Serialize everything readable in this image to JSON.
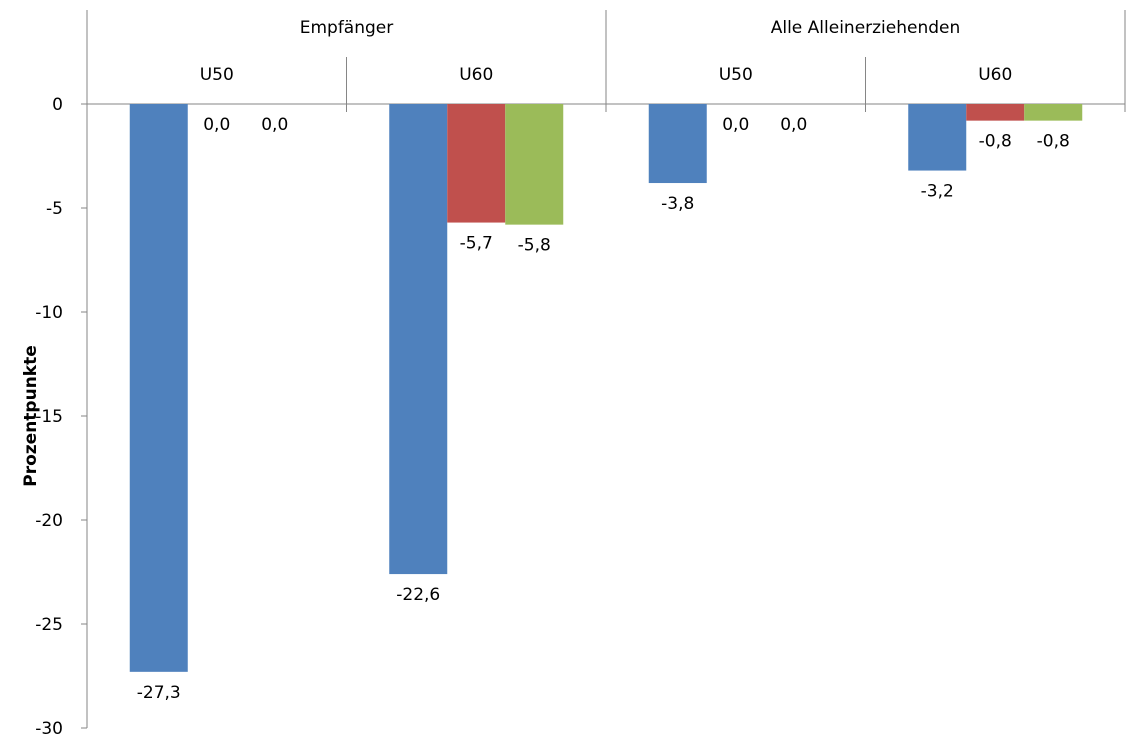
{
  "chart_data": {
    "type": "bar",
    "ylabel": "Prozentpunkte",
    "ylim": [
      -30,
      0
    ],
    "yticks": [
      0,
      -5,
      -10,
      -15,
      -20,
      -25,
      -30
    ],
    "ytick_labels": [
      "0",
      "-5",
      "-10",
      "-15",
      "-20",
      "-25",
      "-30"
    ],
    "x_axis_position": "top",
    "grid": false,
    "legend": "none",
    "groups": [
      {
        "label": "Empfänger",
        "subgroups": [
          {
            "label": "U50",
            "values": [
              -27.3,
              0.0,
              0.0
            ],
            "value_labels": [
              "-27,3",
              "0,0",
              "0,0"
            ]
          },
          {
            "label": "U60",
            "values": [
              -22.6,
              -5.7,
              -5.8
            ],
            "value_labels": [
              "-22,6",
              "-5,7",
              "-5,8"
            ]
          }
        ]
      },
      {
        "label": "Alle Alleinerziehenden",
        "subgroups": [
          {
            "label": "U50",
            "values": [
              -3.8,
              0.0,
              0.0
            ],
            "value_labels": [
              "-3,8",
              "0,0",
              "0,0"
            ]
          },
          {
            "label": "U60",
            "values": [
              -3.2,
              -0.8,
              -0.8
            ],
            "value_labels": [
              "-3,2",
              "-0,8",
              "-0,8"
            ]
          }
        ]
      }
    ],
    "series_colors": [
      "#4f81bd",
      "#c0504d",
      "#9bbb59"
    ]
  }
}
